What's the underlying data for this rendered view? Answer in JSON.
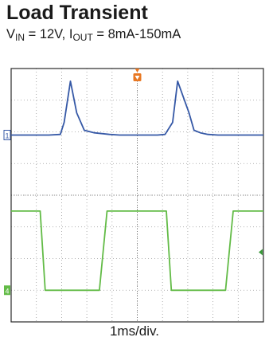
{
  "header": {
    "title": "Load Transient",
    "subtitle_parts": {
      "v": "V",
      "v_sub": "IN",
      "v_rest": " = 12V, ",
      "i": "I",
      "i_sub": "OUT",
      "i_rest": " = 8mA-150mA"
    }
  },
  "chart_data": {
    "type": "line",
    "title": "Load Transient",
    "subtitle": "VIN = 12V, IOUT = 8mA-150mA",
    "xlabel": "1ms/div.",
    "ylabel": "",
    "xlim": [
      0,
      10
    ],
    "ylim": [
      -4,
      4
    ],
    "grid": true,
    "x_unit": "ms",
    "channel_markers": [
      "1",
      "4"
    ],
    "series": [
      {
        "color": "#3558a6",
        "x": [
          0.0,
          0.5,
          1.5,
          1.95,
          2.1,
          2.35,
          2.6,
          2.9,
          3.3,
          3.9,
          4.3,
          5.0,
          5.8,
          6.1,
          6.4,
          6.6,
          7.05,
          7.25,
          7.5,
          7.8,
          8.2,
          8.7,
          9.3,
          10.0
        ],
        "y": [
          1.9,
          1.9,
          1.9,
          1.92,
          2.3,
          3.6,
          2.6,
          2.05,
          1.97,
          1.92,
          1.9,
          1.9,
          1.9,
          1.92,
          2.3,
          3.6,
          2.6,
          2.05,
          1.97,
          1.92,
          1.9,
          1.9,
          1.9,
          1.9
        ]
      },
      {
        "color": "#62bb46",
        "x": [
          0.0,
          1.0,
          1.15,
          1.35,
          3.5,
          3.8,
          3.9,
          6.0,
          6.15,
          6.35,
          8.5,
          8.8,
          8.9,
          10.0
        ],
        "y": [
          -0.5,
          -0.5,
          -0.5,
          -3.0,
          -3.0,
          -0.5,
          -0.5,
          -0.5,
          -0.5,
          -3.0,
          -3.0,
          -0.5,
          -0.5,
          -0.5
        ]
      }
    ]
  }
}
